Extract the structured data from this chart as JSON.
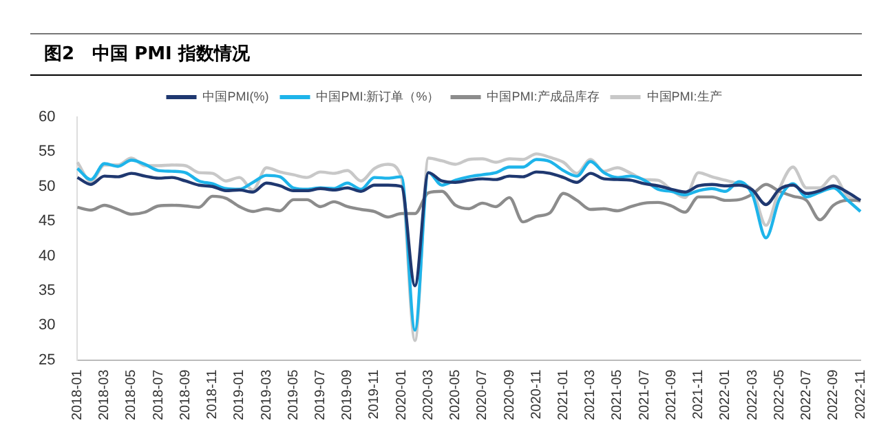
{
  "chart_data": {
    "type": "line",
    "title": "图2　中国 PMI 指数情况",
    "categories": [
      "2018-01",
      null,
      "2018-03",
      null,
      "2018-05",
      null,
      "2018-07",
      null,
      "2018-09",
      null,
      "2018-11",
      null,
      "2019-01",
      null,
      "2019-03",
      null,
      "2019-05",
      null,
      "2019-07",
      null,
      "2019-09",
      null,
      "2019-11",
      null,
      "2020-01",
      null,
      "2020-03",
      null,
      "2020-05",
      null,
      "2020-07",
      null,
      "2020-09",
      null,
      "2020-11",
      null,
      "2021-01",
      null,
      "2021-03",
      null,
      "2021-05",
      null,
      "2021-07",
      null,
      "2021-09",
      null,
      "2021-11",
      null,
      "2022-01",
      null,
      "2022-03",
      null,
      "2022-05",
      null,
      "2022-07",
      null,
      "2022-09",
      null,
      "2022-11"
    ],
    "series": [
      {
        "name": "中国PMI(%)",
        "color": "#1f3870",
        "values": [
          51.3,
          50.3,
          51.5,
          51.4,
          51.9,
          51.5,
          51.2,
          51.3,
          50.8,
          50.2,
          50.0,
          49.4,
          49.5,
          49.2,
          50.5,
          50.1,
          49.4,
          49.4,
          49.7,
          49.5,
          49.8,
          49.3,
          50.2,
          50.2,
          50.0,
          35.7,
          52.0,
          50.8,
          50.6,
          50.9,
          51.1,
          51.0,
          51.5,
          51.4,
          52.1,
          51.9,
          51.3,
          50.6,
          51.9,
          51.1,
          51.0,
          50.9,
          50.4,
          50.1,
          49.6,
          49.2,
          50.1,
          50.3,
          50.1,
          50.2,
          49.5,
          47.4,
          49.6,
          50.2,
          49.0,
          49.4,
          50.1,
          49.2,
          48.0
        ]
      },
      {
        "name": "中国PMI:新订单（%）",
        "color": "#1eb4ea",
        "values": [
          52.6,
          51.0,
          53.3,
          52.9,
          53.8,
          53.2,
          52.3,
          52.2,
          52.0,
          50.8,
          50.4,
          49.7,
          49.6,
          50.6,
          51.6,
          51.4,
          49.8,
          49.6,
          49.8,
          49.7,
          50.5,
          49.6,
          51.3,
          51.2,
          51.4,
          29.3,
          52.0,
          50.2,
          50.9,
          51.4,
          51.7,
          52.0,
          52.8,
          52.8,
          53.9,
          53.6,
          52.3,
          51.5,
          53.6,
          52.0,
          51.3,
          51.5,
          50.9,
          49.6,
          49.3,
          48.8,
          49.4,
          49.7,
          49.3,
          50.7,
          48.8,
          42.6,
          48.2,
          50.4,
          48.5,
          49.2,
          49.8,
          48.1,
          46.4
        ]
      },
      {
        "name": "中国PMI:产成品库存",
        "color": "#8c8c8c",
        "values": [
          47.0,
          46.6,
          47.3,
          46.7,
          46.0,
          46.3,
          47.2,
          47.3,
          47.2,
          47.0,
          48.6,
          48.3,
          47.1,
          46.4,
          46.8,
          46.5,
          48.1,
          48.1,
          47.1,
          47.8,
          47.1,
          46.7,
          46.4,
          45.6,
          46.1,
          46.1,
          49.1,
          49.3,
          47.3,
          46.8,
          47.6,
          47.1,
          48.4,
          44.9,
          45.7,
          46.2,
          49.0,
          48.0,
          46.7,
          46.8,
          46.5,
          47.1,
          47.6,
          47.7,
          47.2,
          46.3,
          48.5,
          48.5,
          48.0,
          48.1,
          48.9,
          50.3,
          49.3,
          48.6,
          48.0,
          45.2,
          47.3,
          48.0,
          48.0
        ]
      },
      {
        "name": "中国PMI:生产",
        "color": "#c8c8c8",
        "values": [
          53.5,
          50.7,
          53.1,
          53.1,
          54.1,
          53.0,
          53.0,
          53.1,
          53.0,
          52.0,
          51.9,
          50.8,
          51.3,
          49.5,
          52.7,
          52.1,
          51.7,
          51.3,
          52.1,
          51.9,
          52.3,
          50.8,
          52.6,
          53.2,
          51.3,
          27.8,
          54.1,
          53.7,
          53.2,
          53.9,
          54.0,
          53.5,
          54.0,
          53.9,
          54.7,
          54.2,
          53.5,
          51.9,
          53.9,
          52.2,
          52.7,
          51.9,
          51.0,
          50.9,
          49.5,
          48.4,
          52.0,
          51.4,
          50.9,
          50.4,
          49.5,
          44.4,
          49.7,
          52.8,
          49.8,
          49.8,
          51.5,
          48.7,
          47.8
        ]
      }
    ],
    "ylim": [
      25,
      60
    ],
    "yticks": [
      25,
      30,
      35,
      40,
      45,
      50,
      55,
      60
    ],
    "grid": false,
    "legend": "top",
    "marker": "none",
    "line_style": "solid"
  }
}
